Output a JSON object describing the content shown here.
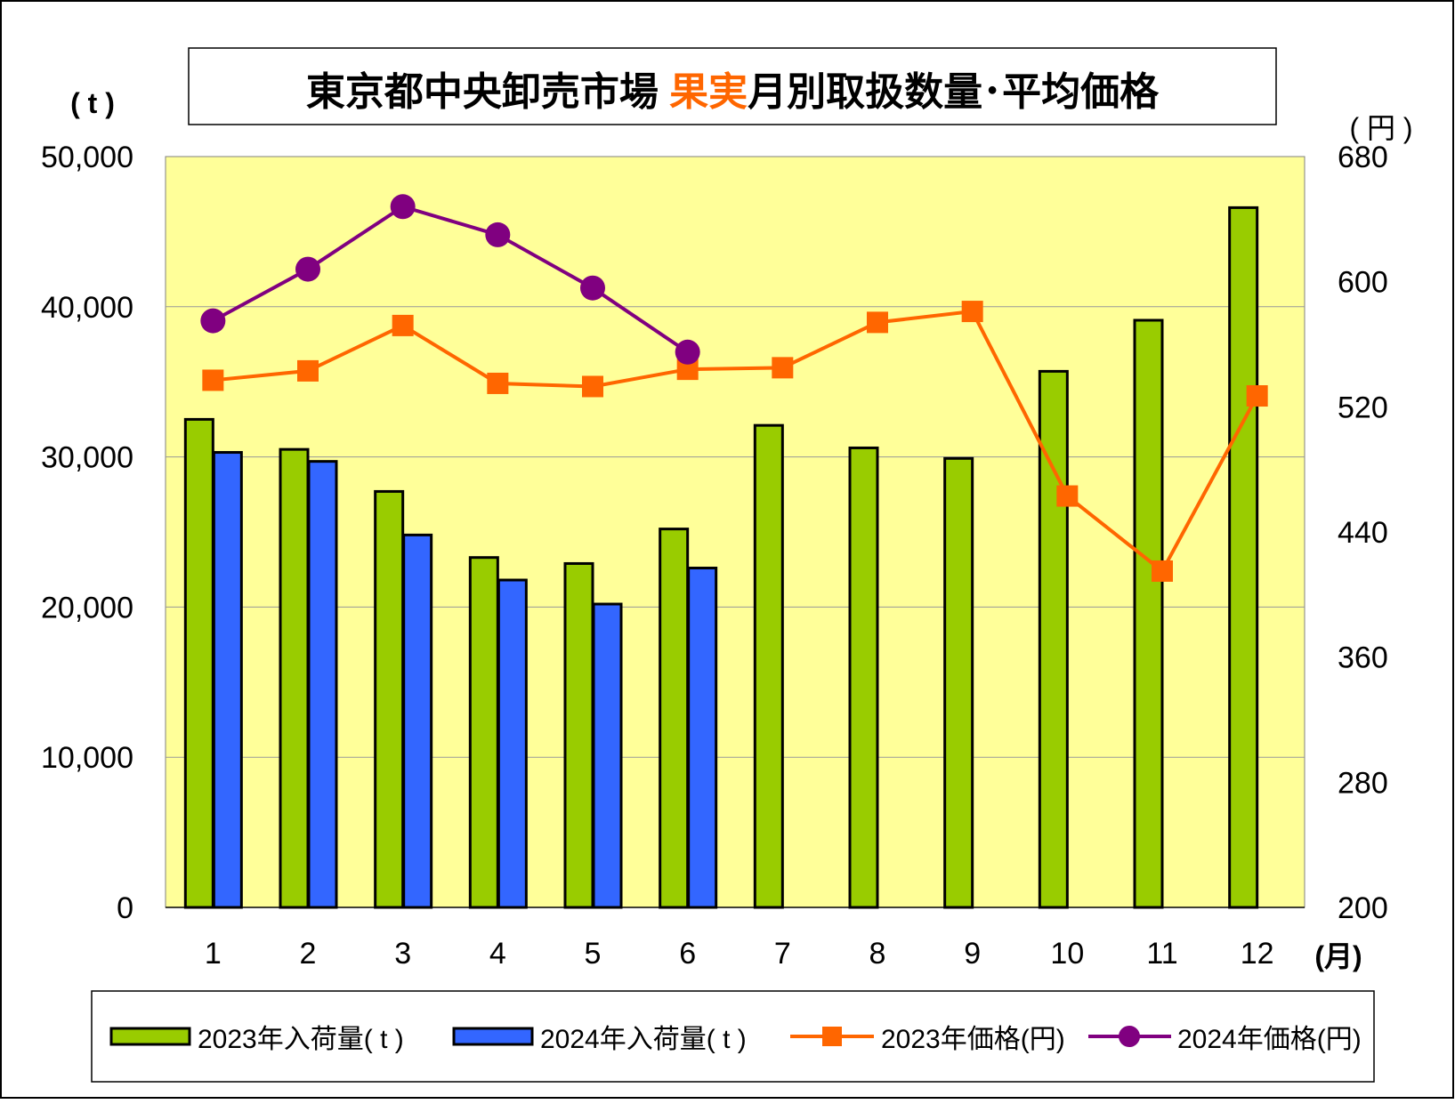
{
  "chart_data": {
    "type": "bar+line",
    "title_parts": [
      "東京都中央卸売市場 ",
      "果実",
      "月別取扱数量･平均価格"
    ],
    "categories": [
      "1",
      "2",
      "3",
      "4",
      "5",
      "6",
      "7",
      "8",
      "9",
      "10",
      "11",
      "12"
    ],
    "x_unit": "(月)",
    "y_left": {
      "unit": "( t )",
      "ylim": [
        0,
        50000
      ],
      "ticks": [
        "0",
        "10,000",
        "20,000",
        "30,000",
        "40,000",
        "50,000"
      ]
    },
    "y_right": {
      "unit": "( 円 )",
      "ylim": [
        200,
        680
      ],
      "ticks": [
        "200",
        "280",
        "360",
        "440",
        "520",
        "600",
        "680"
      ]
    },
    "grid": true,
    "legend_position": "bottom",
    "series": [
      {
        "name": "2023年入荷量( t )",
        "kind": "bar",
        "axis": "left",
        "color": "#99cc00",
        "values": [
          32500,
          30500,
          27700,
          23300,
          22900,
          25200,
          32100,
          30600,
          29900,
          35700,
          39100,
          46600
        ]
      },
      {
        "name": "2024年入荷量( t )",
        "kind": "bar",
        "axis": "left",
        "color": "#3366ff",
        "values": [
          30300,
          29700,
          24800,
          21800,
          20200,
          22600,
          null,
          null,
          null,
          null,
          null,
          null
        ]
      },
      {
        "name": "2023年価格(円)",
        "kind": "line",
        "marker": "square",
        "axis": "right",
        "color": "#ff6600",
        "values": [
          537,
          543,
          572,
          535,
          533,
          544,
          545,
          574,
          581,
          463,
          415,
          527
        ]
      },
      {
        "name": "2024年価格(円)",
        "kind": "line",
        "marker": "circle",
        "axis": "right",
        "color": "#800080",
        "values": [
          575,
          608,
          648,
          630,
          596,
          555,
          null,
          null,
          null,
          null,
          null,
          null
        ]
      }
    ]
  }
}
